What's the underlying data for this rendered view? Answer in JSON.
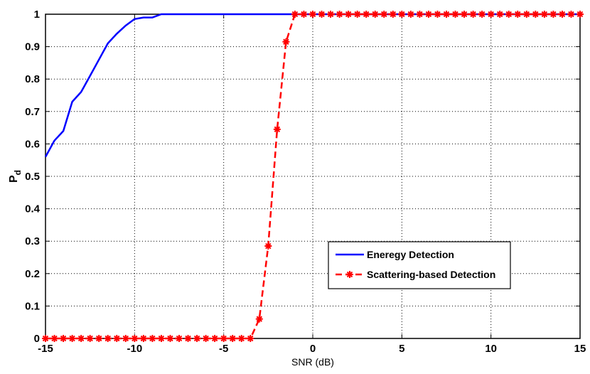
{
  "chart_data": {
    "type": "line",
    "xlabel": "SNR (dB)",
    "ylabel_main": "P",
    "ylabel_sub": "d",
    "xlim": [
      -15,
      15
    ],
    "ylim": [
      0,
      1
    ],
    "xticks": [
      -15,
      -10,
      -5,
      0,
      5,
      10,
      15
    ],
    "yticks": [
      0,
      0.1,
      0.2,
      0.3,
      0.4,
      0.5,
      0.6,
      0.7,
      0.8,
      0.9,
      1
    ],
    "grid": true,
    "legend_position": "bottom-right",
    "series": [
      {
        "name": "Eneregy Detection",
        "color": "#0000ff",
        "style": "solid",
        "marker": "none",
        "x": [
          -15,
          -14.5,
          -14,
          -13.5,
          -13,
          -12.5,
          -12,
          -11.5,
          -11,
          -10.5,
          -10,
          -9.5,
          -9,
          -8.5,
          -8,
          15
        ],
        "y": [
          0.56,
          0.61,
          0.64,
          0.73,
          0.76,
          0.81,
          0.86,
          0.91,
          0.94,
          0.965,
          0.985,
          0.99,
          0.99,
          1.0,
          1.0,
          1.0
        ]
      },
      {
        "name": "Scattering-based Detection",
        "color": "#ff0000",
        "style": "dashed",
        "marker": "star",
        "x": [
          -15,
          -14.5,
          -14,
          -13.5,
          -13,
          -12.5,
          -12,
          -11.5,
          -11,
          -10.5,
          -10,
          -9.5,
          -9,
          -8.5,
          -8,
          -7.5,
          -7,
          -6.5,
          -6,
          -5.5,
          -5,
          -4.5,
          -4,
          -3.5,
          -3,
          -2.5,
          -2,
          -1.5,
          -1,
          -0.5,
          0,
          0.5,
          1,
          1.5,
          2,
          2.5,
          3,
          3.5,
          4,
          4.5,
          5,
          5.5,
          6,
          6.5,
          7,
          7.5,
          8,
          8.5,
          9,
          9.5,
          10,
          10.5,
          11,
          11.5,
          12,
          12.5,
          13,
          13.5,
          14,
          14.5,
          15
        ],
        "y": [
          0,
          0,
          0,
          0,
          0,
          0,
          0,
          0,
          0,
          0,
          0,
          0,
          0,
          0,
          0,
          0,
          0,
          0,
          0,
          0,
          0,
          0,
          0,
          0,
          0.06,
          0.285,
          0.645,
          0.915,
          1,
          1,
          1,
          1,
          1,
          1,
          1,
          1,
          1,
          1,
          1,
          1,
          1,
          1,
          1,
          1,
          1,
          1,
          1,
          1,
          1,
          1,
          1,
          1,
          1,
          1,
          1,
          1,
          1,
          1,
          1,
          1,
          1
        ]
      }
    ]
  }
}
